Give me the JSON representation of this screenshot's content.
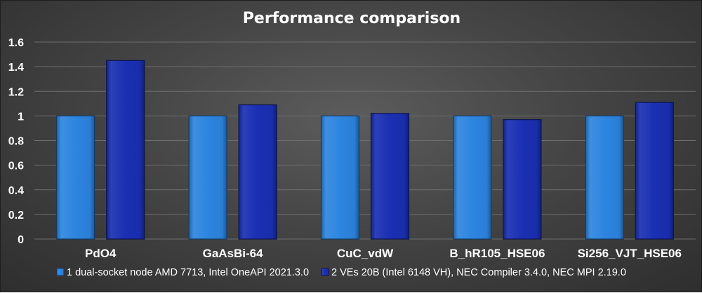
{
  "chart_data": {
    "type": "bar",
    "title": "Performance comparison",
    "xlabel": "",
    "ylabel": "",
    "categories": [
      "PdO4",
      "GaAsBi-64",
      "CuC_vdW",
      "B_hR105_HSE06",
      "Si256_VJT_HSE06"
    ],
    "series": [
      {
        "name": "1 dual-socket node AMD 7713, Intel OneAPI 2021.3.0",
        "color": "#2d85e0",
        "values": [
          1.0,
          1.0,
          1.0,
          1.0,
          1.0
        ]
      },
      {
        "name": "2 VEs 20B (Intel 6148 VH), NEC Compiler 3.4.0, NEC MPI 2.19.0",
        "color": "#1a2fb3",
        "values": [
          1.45,
          1.09,
          1.02,
          0.97,
          1.11
        ]
      }
    ],
    "ylim": [
      0,
      1.6
    ],
    "yticks": [
      "0",
      "0.2",
      "0.4",
      "0.6",
      "0.8",
      "1",
      "1.2",
      "1.4",
      "1.6"
    ],
    "grid": true,
    "legend_position": "bottom"
  }
}
